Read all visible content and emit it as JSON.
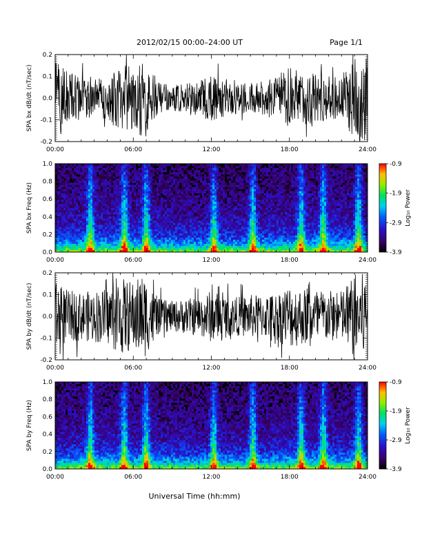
{
  "header": {
    "title": "2012/02/15  00:00–24:00 UT",
    "page": "Page 1/1"
  },
  "footer": {
    "xlabel": "Universal Time (hh:mm)"
  },
  "colors": {
    "background": "#ffffff",
    "trace": "#000000",
    "spectrogram_floor": "#000000"
  },
  "chart_data": [
    {
      "type": "line",
      "ylabel": "SPA bx dB/dt (nT/sec)",
      "xlim": [
        0,
        24
      ],
      "ylim": [
        -0.2,
        0.2
      ],
      "x_ticks": [
        "00:00",
        "06:00",
        "12:00",
        "18:00",
        "24:00"
      ],
      "y_ticks": [
        "-0.2",
        "-0.1",
        "0.0",
        "0.1",
        "0.2"
      ],
      "x_hours": [
        0,
        1,
        2,
        3,
        4,
        5,
        6,
        6.8,
        7.5,
        8,
        9,
        10,
        11,
        12,
        13,
        14,
        15,
        16,
        17,
        18,
        19,
        20,
        21,
        22,
        23,
        24
      ],
      "amplitude_envelope": [
        0.2,
        0.12,
        0.1,
        0.09,
        0.1,
        0.16,
        0.14,
        0.2,
        0.12,
        0.07,
        0.06,
        0.07,
        0.08,
        0.11,
        0.09,
        0.07,
        0.07,
        0.08,
        0.1,
        0.14,
        0.12,
        0.13,
        0.1,
        0.1,
        0.2,
        0.2
      ]
    },
    {
      "type": "heatmap",
      "ylabel": "SPA bx Freq (Hz)",
      "xlim": [
        0,
        24
      ],
      "ylim": [
        0,
        1.0
      ],
      "x_ticks": [
        "00:00",
        "06:00",
        "12:00",
        "18:00",
        "24:00"
      ],
      "y_ticks": [
        "0.0",
        "0.2",
        "0.4",
        "0.6",
        "0.8",
        "1.0"
      ],
      "colorbar": {
        "label": "Log₁₀ Power",
        "ticks": [
          "-0.9",
          "-1.9",
          "-2.9",
          "-3.9"
        ],
        "range": [
          -3.9,
          -0.9
        ]
      },
      "bright_bands_hours": [
        2.7,
        5.3,
        7.0,
        12.2,
        15.2,
        18.9,
        20.6,
        23.3
      ]
    },
    {
      "type": "line",
      "ylabel": "SPA by dB/dt (nT/sec)",
      "xlim": [
        0,
        24
      ],
      "ylim": [
        -0.2,
        0.2
      ],
      "x_ticks": [
        "00:00",
        "06:00",
        "12:00",
        "18:00",
        "24:00"
      ],
      "y_ticks": [
        "-0.2",
        "-0.1",
        "0.0",
        "0.1",
        "0.2"
      ],
      "x_hours": [
        0,
        1,
        2,
        3,
        4,
        5,
        6,
        6.8,
        7.5,
        8,
        9,
        10,
        11,
        12,
        13,
        14,
        15,
        16,
        17,
        18,
        19,
        20,
        21,
        22,
        23,
        24
      ],
      "amplitude_envelope": [
        0.16,
        0.12,
        0.11,
        0.12,
        0.13,
        0.18,
        0.16,
        0.2,
        0.12,
        0.08,
        0.07,
        0.08,
        0.09,
        0.12,
        0.1,
        0.09,
        0.1,
        0.1,
        0.11,
        0.15,
        0.13,
        0.13,
        0.12,
        0.12,
        0.2,
        0.2
      ]
    },
    {
      "type": "heatmap",
      "ylabel": "SPA by Freq (Hz)",
      "xlim": [
        0,
        24
      ],
      "ylim": [
        0,
        1.0
      ],
      "x_ticks": [
        "00:00",
        "06:00",
        "12:00",
        "18:00",
        "24:00"
      ],
      "y_ticks": [
        "0.0",
        "0.2",
        "0.4",
        "0.6",
        "0.8",
        "1.0"
      ],
      "colorbar": {
        "label": "Log₁₀ Power",
        "ticks": [
          "-0.9",
          "-1.9",
          "-2.9",
          "-3.9"
        ],
        "range": [
          -3.9,
          -0.9
        ]
      },
      "bright_bands_hours": [
        2.7,
        5.3,
        7.0,
        12.2,
        15.2,
        18.9,
        20.6,
        23.3
      ]
    }
  ]
}
